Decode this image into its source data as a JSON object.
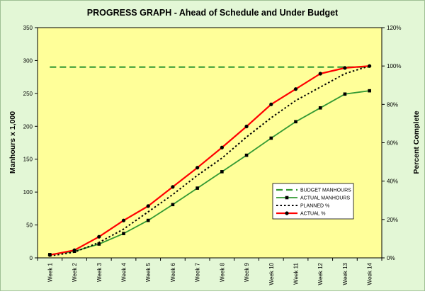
{
  "chart_data": {
    "type": "line",
    "title": "PROGRESS GRAPH  -  Ahead of Schedule and Under Budget",
    "ylabel": "Manhours x 1,000",
    "y2label": "Percent Complete",
    "xlabel": "",
    "categories": [
      "Week 1",
      "Week 2",
      "Week 3",
      "Week 4",
      "Week 5",
      "Week 6",
      "Week 7",
      "Week 8",
      "Week 9",
      "Week 10",
      "Week 11",
      "Week 12",
      "Week 13",
      "Week 14"
    ],
    "ylim": [
      0,
      350
    ],
    "y_ticks": [
      0,
      50,
      100,
      150,
      200,
      250,
      300,
      350
    ],
    "y2lim": [
      0,
      120
    ],
    "y2_ticks": [
      0,
      20,
      40,
      60,
      80,
      100,
      120
    ],
    "y2_tick_labels": [
      "0%",
      "20%",
      "40%",
      "60%",
      "80%",
      "100%",
      "120%"
    ],
    "legend_position": "center-right",
    "colors": {
      "stage_bg": "#e3f7d6",
      "plot_bg": "#ffff99",
      "budget": "#339933",
      "actual_manhours": "#339933",
      "planned": "#000000",
      "actual_pct": "#ff0000"
    },
    "series": [
      {
        "name": "BUDGET MANHOURS",
        "axis": "left",
        "style": "dashed",
        "values": [
          290,
          290,
          290,
          290,
          290,
          290,
          290,
          290,
          290,
          290,
          290,
          290,
          290,
          290
        ]
      },
      {
        "name": "ACTUAL MANHOURS",
        "axis": "left",
        "style": "line-square",
        "values": [
          5,
          10,
          21,
          37,
          57,
          81,
          106,
          131,
          156,
          182,
          207,
          228,
          249,
          254
        ]
      },
      {
        "name": "PLANNED %",
        "axis": "right",
        "style": "dotted",
        "values": [
          1,
          3,
          8,
          15,
          24,
          33,
          43,
          52,
          63,
          73,
          82,
          89,
          96,
          100
        ]
      },
      {
        "name": "ACTUAL %",
        "axis": "right",
        "style": "line-circle",
        "values": [
          1.5,
          4,
          11,
          19.5,
          27,
          37,
          47,
          57.5,
          68.5,
          80,
          88,
          96,
          99,
          100
        ]
      }
    ]
  }
}
